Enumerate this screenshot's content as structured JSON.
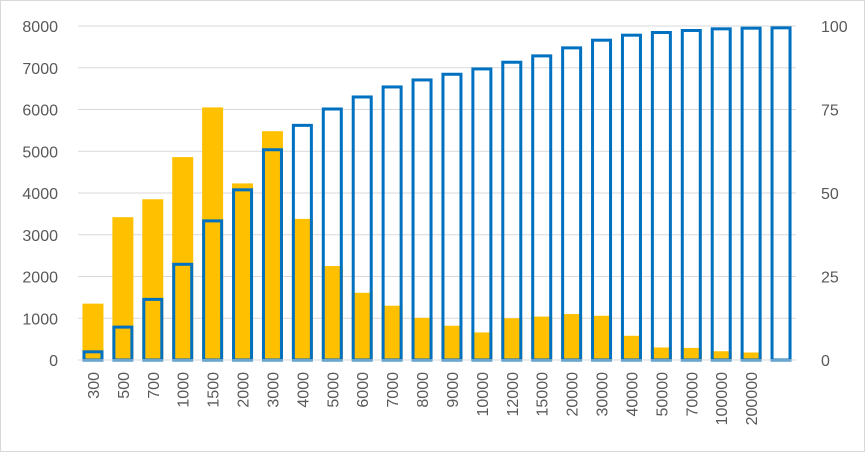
{
  "chart_data": {
    "type": "bar",
    "title": "",
    "xlabel": "",
    "ylabel": "",
    "y2label": "",
    "categories": [
      "300",
      "500",
      "700",
      "1000",
      "1500",
      "2000",
      "3000",
      "4000",
      "5000",
      "6000",
      "7000",
      "8000",
      "9000",
      "10000",
      "12000",
      "15000",
      "20000",
      "30000",
      "40000",
      "50000",
      "70000",
      "100000",
      "200000",
      ""
    ],
    "ylim": [
      0,
      8000
    ],
    "yticks": [
      "0",
      "1000",
      "2000",
      "3000",
      "4000",
      "5000",
      "6000",
      "7000",
      "8000"
    ],
    "y2lim": [
      0,
      100
    ],
    "y2ticks": [
      "0",
      "25",
      "50",
      "75",
      "100"
    ],
    "grid": true,
    "legend": "none",
    "series": [
      {
        "axis": "left",
        "style": "filled",
        "color": "#ffc000",
        "values": [
          1350,
          3420,
          3850,
          4860,
          6050,
          4230,
          5480,
          3380,
          2250,
          1610,
          1300,
          1010,
          820,
          660,
          1000,
          1040,
          1100,
          1060,
          580,
          300,
          290,
          210,
          180,
          null
        ]
      },
      {
        "axis": "right",
        "style": "outline",
        "color": "#0070c0",
        "values": [
          2.9,
          10.3,
          18.6,
          29.1,
          42.1,
          51.4,
          63.4,
          70.7,
          75.6,
          79.2,
          82.2,
          84.3,
          86.0,
          87.6,
          89.6,
          91.5,
          93.9,
          96.2,
          97.7,
          98.5,
          99.1,
          99.6,
          99.8,
          99.9
        ]
      }
    ]
  }
}
